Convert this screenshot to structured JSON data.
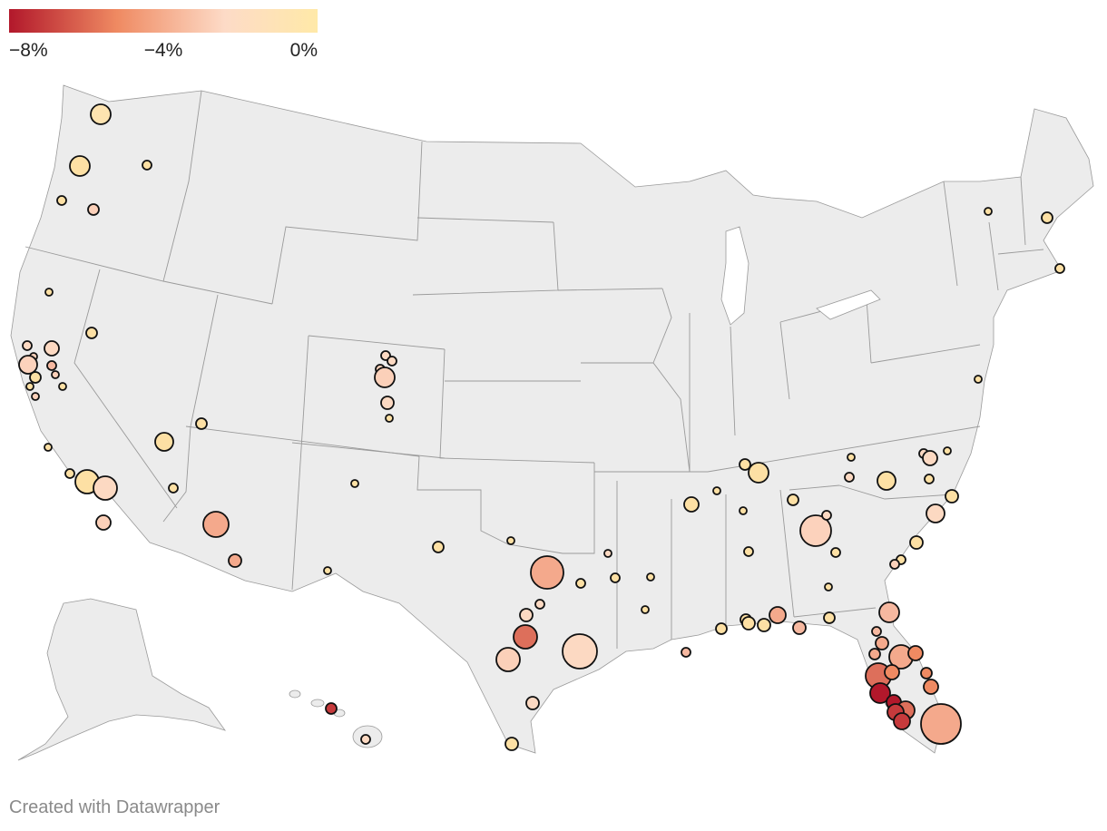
{
  "legend": {
    "label_left": "−8%",
    "label_mid": "−4%",
    "label_right": "0%",
    "gradient_colors": [
      "#b2182b",
      "#ef8a62",
      "#fddbc7",
      "#ffe9a8"
    ]
  },
  "map": {
    "land_color": "#ececec",
    "border_color": "#9a9a9a",
    "marker_outline": "#111111"
  },
  "footer": {
    "credit": "Created with Datawrapper"
  }
}
